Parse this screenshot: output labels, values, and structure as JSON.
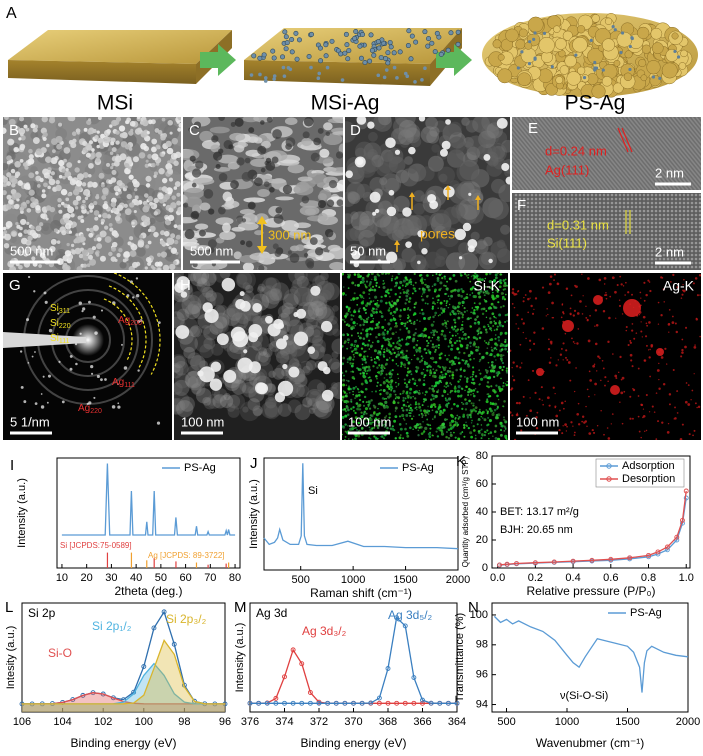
{
  "figure": {
    "A": {
      "panel": "A",
      "labels": [
        "MSi",
        "MSi-Ag",
        "PS-Ag"
      ]
    },
    "B": {
      "panel": "B",
      "scale_bar": "500 nm"
    },
    "C": {
      "panel": "C",
      "scale_bar": "500 nm",
      "annotation": "300 nm"
    },
    "D": {
      "panel": "D",
      "scale_bar": "50 nm",
      "annotation": "pores"
    },
    "E": {
      "panel": "E",
      "spacing": "d=0.24 nm",
      "plane": "Ag(111)",
      "scale_bar": "2 nm"
    },
    "F": {
      "panel": "F",
      "spacing": "d=0.31 nm",
      "plane": "Si(111)",
      "scale_bar": "2 nm"
    },
    "G": {
      "panel": "G",
      "scale_bar": "5 1/nm",
      "rings": [
        {
          "main": "Si",
          "sub": "311"
        },
        {
          "main": "Si",
          "sub": "220"
        },
        {
          "main": "Si",
          "sub": "111"
        }
      ],
      "spots": [
        {
          "main": "Ag",
          "sub": "200"
        },
        {
          "main": "Ag",
          "sub": "111"
        },
        {
          "main": "Ag",
          "sub": "220"
        }
      ]
    },
    "H": {
      "panel": "H",
      "scale_bar": "100 nm"
    },
    "Si_K": {
      "label": "Si-K",
      "scale_bar": "100 nm"
    },
    "Ag_K": {
      "label": "Ag-K",
      "scale_bar": "100 nm"
    }
  },
  "chart_data": [
    {
      "type": "line",
      "panel": "I",
      "xlabel": "2theta (deg.)",
      "ylabel": "Intensity (a.u.)",
      "xlim": [
        8,
        82
      ],
      "xticks": [
        10,
        20,
        30,
        40,
        50,
        60,
        70,
        80
      ],
      "ylim": [
        0,
        100
      ],
      "legend": "upper right",
      "series": [
        {
          "name": "PS-Ag",
          "color": "#5b9bd5",
          "x": [
            10,
            20,
            27.5,
            28.4,
            29.3,
            37.5,
            38.1,
            38.7,
            43.8,
            44.3,
            44.8,
            46.7,
            47.3,
            47.9,
            55.5,
            56.1,
            56.7,
            63.9,
            64.4,
            64.9,
            68.6,
            69.1,
            69.6,
            75.9,
            76.4,
            76.9,
            77.4,
            77.9,
            80
          ],
          "values": [
            30,
            30,
            30,
            95,
            30,
            30,
            70,
            30,
            30,
            42,
            30,
            30,
            70,
            30,
            30,
            46,
            30,
            30,
            38,
            30,
            30,
            33,
            30,
            30,
            34,
            30,
            35,
            30,
            30
          ]
        }
      ],
      "sticks": [
        {
          "name": "Si [JCPDS:75-0589]",
          "color": "#e04040",
          "x": [
            28.4,
            47.3,
            56.1,
            69.1,
            76.4
          ],
          "values": [
            14,
            9,
            6,
            3,
            4
          ]
        },
        {
          "name": "Ag [JCPDS: 89-3722]",
          "color": "#f0a030",
          "x": [
            38.1,
            44.3,
            64.4,
            77.4
          ],
          "values": [
            14,
            7,
            5,
            5
          ]
        }
      ]
    },
    {
      "type": "line",
      "panel": "J",
      "xlabel": "Raman shift (cm⁻¹)",
      "ylabel": "Intensity (a.u.)",
      "xlim": [
        150,
        2000
      ],
      "xticks": [
        500,
        1000,
        1500,
        2000
      ],
      "ylim": [
        0,
        105
      ],
      "legend": "upper right",
      "annotations": [
        "Si"
      ],
      "series": [
        {
          "name": "PS-Ag",
          "color": "#5b9bd5",
          "x": [
            150,
            200,
            250,
            280,
            300,
            330,
            400,
            480,
            505,
            520,
            535,
            560,
            650,
            800,
            950,
            1100,
            1300,
            1500,
            1800,
            2000
          ],
          "values": [
            30,
            24,
            26,
            30,
            38,
            28,
            24,
            24,
            32,
            100,
            32,
            24,
            23,
            23,
            27,
            22,
            22,
            21,
            21,
            20
          ]
        }
      ]
    },
    {
      "type": "line",
      "panel": "K",
      "xlabel": "Relative pressure (P/P₀)",
      "ylabel": "Quantity adsorbed (cm³/g STP)",
      "xlim": [
        -0.03,
        1.02
      ],
      "xticks": [
        {
          "value": 0,
          "label": "0.0"
        },
        0.2,
        0.4,
        0.6,
        0.8,
        {
          "value": 1,
          "label": "1.0"
        }
      ],
      "ylim": [
        0,
        80
      ],
      "yticks": [
        0,
        20,
        40,
        60,
        80
      ],
      "legend": "upper right",
      "annotations": [
        "BET: 13.17 m²/g",
        "BJH: 20.65 nm"
      ],
      "series": [
        {
          "name": "Adsorption",
          "color": "#5b9bd5",
          "markers": true,
          "x": [
            0.01,
            0.05,
            0.1,
            0.2,
            0.3,
            0.4,
            0.5,
            0.6,
            0.7,
            0.8,
            0.85,
            0.9,
            0.95,
            0.98,
            1.0
          ],
          "values": [
            2,
            2.5,
            3,
            3.5,
            4,
            4.5,
            5,
            5.5,
            6.5,
            8,
            10,
            13,
            20,
            32,
            50
          ]
        },
        {
          "name": "Desorption",
          "color": "#e05050",
          "markers": true,
          "x": [
            0.01,
            0.05,
            0.1,
            0.2,
            0.3,
            0.4,
            0.5,
            0.6,
            0.7,
            0.8,
            0.85,
            0.9,
            0.95,
            0.98,
            1.0
          ],
          "values": [
            2.2,
            2.7,
            3.2,
            3.8,
            4.3,
            4.9,
            5.5,
            6.2,
            7.3,
            9,
            11.5,
            15,
            22,
            34,
            55
          ]
        }
      ]
    },
    {
      "type": "line",
      "panel": "L",
      "title": "Si 2p",
      "xlabel": "Binding energy (eV)",
      "ylabel": "Intesity (a.u.)",
      "xlim": [
        106,
        96
      ],
      "xticks": [
        106,
        104,
        102,
        100,
        98,
        96
      ],
      "ylim": [
        0,
        135
      ],
      "series": [
        {
          "color": "#2f6fae",
          "markers": true,
          "x": [
            106,
            105.5,
            105,
            104.5,
            104,
            103.5,
            103,
            102.5,
            102,
            101.5,
            101,
            100.5,
            100,
            99.5,
            99,
            98.5,
            98,
            97.5,
            97,
            96.5,
            96
          ],
          "values": [
            10,
            10,
            10.1,
            10.4,
            11.9,
            15.4,
            20.6,
            23.9,
            22.3,
            17.6,
            15.3,
            24.5,
            56.3,
            104.1,
            124,
            83.9,
            33.2,
            13.3,
            10.2,
            10,
            10
          ]
        },
        {
          "name": "Si-O",
          "color": "#e05050",
          "fill": true,
          "x": [
            106,
            105.5,
            105,
            104.5,
            104,
            103.5,
            103,
            102.5,
            102,
            101.5,
            101,
            100.5,
            100,
            99.5,
            99,
            98.5,
            98,
            97.5,
            97,
            96.5,
            96
          ],
          "values": [
            10,
            10,
            10.1,
            10.4,
            11.9,
            15.4,
            20.6,
            23.9,
            22.3,
            17.4,
            13,
            10.8,
            10.2,
            10,
            10,
            10,
            10,
            10,
            10,
            10,
            10
          ]
        },
        {
          "name": "Si 2p₁/₂",
          "color": "#4fb3e0",
          "fill": true,
          "x": [
            106,
            105.5,
            105,
            104.5,
            104,
            103.5,
            103,
            102.5,
            102,
            101.5,
            101,
            100.5,
            100,
            99.5,
            99,
            98.5,
            98,
            97.5,
            97,
            96.5,
            96
          ],
          "values": [
            10,
            10,
            10,
            10,
            10,
            10,
            10,
            10,
            10,
            10.2,
            12.2,
            22.5,
            45.3,
            60,
            45.3,
            22.5,
            12.2,
            10.2,
            10,
            10,
            10
          ]
        },
        {
          "name": "Si 2p₃/₂",
          "color": "#d9b52c",
          "fill": true,
          "x": [
            106,
            105.5,
            105,
            104.5,
            104,
            103.5,
            103,
            102.5,
            102,
            101.5,
            101,
            100.5,
            100,
            99.5,
            99,
            98.5,
            98,
            97.5,
            97,
            96.5,
            96
          ],
          "values": [
            10,
            10,
            10,
            10,
            10,
            10,
            10,
            10,
            10,
            10,
            10.1,
            11.2,
            20.8,
            54.1,
            88.7,
            71.4,
            31,
            13.1,
            10.2,
            10,
            10
          ]
        }
      ]
    },
    {
      "type": "line",
      "panel": "M",
      "title": "Ag 3d",
      "xlabel": "Binding energy (eV)",
      "ylabel": "Intensity (a.u.)",
      "xlim": [
        376,
        364
      ],
      "xticks": [
        376,
        374,
        372,
        370,
        368,
        366,
        364
      ],
      "ylim": [
        0,
        100
      ],
      "series": [
        {
          "name": "Ag 3d₃/₂",
          "color": "#e04040",
          "markers": true,
          "x": [
            376,
            375.5,
            375,
            374.5,
            374,
            373.5,
            373,
            372.5,
            372,
            371.5,
            371,
            370.5,
            370,
            369.5,
            369,
            368.5,
            368,
            367.5,
            367,
            366.5,
            366,
            365.5,
            365,
            364.5,
            364
          ],
          "values": [
            8,
            8,
            8.3,
            12.5,
            32.3,
            57,
            44.3,
            17.9,
            9,
            8,
            8,
            8,
            8,
            8,
            8,
            8,
            8,
            8,
            8,
            8,
            8,
            8,
            8,
            8,
            8
          ]
        },
        {
          "name": "Ag 3d₅/₂",
          "color": "#3a7fc0",
          "markers": true,
          "x": [
            376,
            375.5,
            375,
            374.5,
            374,
            373.5,
            373,
            372.5,
            372,
            371.5,
            371,
            370.5,
            370,
            369.5,
            369,
            368.5,
            368,
            367.5,
            367,
            366.5,
            366,
            365.5,
            365,
            364.5,
            364
          ],
          "values": [
            8,
            8,
            8,
            8,
            8,
            8,
            8,
            8,
            8,
            8,
            8,
            8,
            8,
            8,
            8.3,
            12.8,
            39.9,
            86.5,
            79,
            31.6,
            10.9,
            8.1,
            8,
            8,
            8
          ]
        }
      ]
    },
    {
      "type": "line",
      "panel": "N",
      "xlabel": "Wavenubmer (cm⁻¹)",
      "ylabel": "Transmittance (%)",
      "xlim": [
        380,
        2000
      ],
      "xticks": [
        500,
        1000,
        1500,
        2000
      ],
      "ylim": [
        93.5,
        100.8
      ],
      "yticks": [
        94,
        96,
        98,
        100
      ],
      "legend": "upper right",
      "annotations": [
        "ν(Si-O-Si)"
      ],
      "series": [
        {
          "name": "PS-Ag",
          "color": "#5b9bd5",
          "x": [
            400,
            450,
            500,
            550,
            600,
            700,
            800,
            900,
            1000,
            1050,
            1100,
            1150,
            1200,
            1250,
            1300,
            1400,
            1500,
            1550,
            1600,
            1620,
            1640,
            1660,
            1700,
            1800,
            1900,
            2000
          ],
          "values": [
            99.9,
            99.5,
            99.7,
            99.4,
            99.6,
            99.2,
            98.9,
            98.3,
            97.3,
            96.8,
            96.5,
            97.2,
            97.8,
            98.4,
            98.3,
            98.1,
            97.9,
            97.5,
            96.5,
            94.8,
            96.8,
            97.6,
            97.9,
            97.5,
            97.3,
            97.2
          ]
        }
      ]
    }
  ]
}
